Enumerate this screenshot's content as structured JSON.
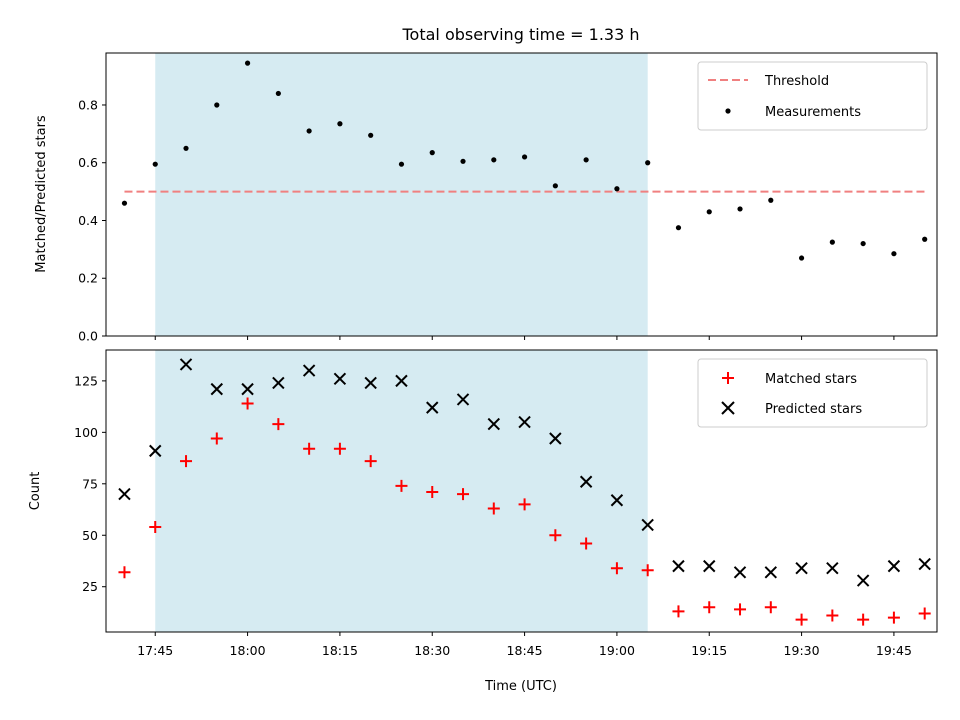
{
  "title": "Total observing time = 1.33 h",
  "colors": {
    "shade": "#add8e6",
    "threshold": "#f08080",
    "matched": "#ff0000",
    "predicted": "#000000",
    "measure": "#000000"
  },
  "chart_data": [
    {
      "type": "scatter",
      "ylabel": "Matched/Predicted stars",
      "xlabel": "",
      "xlim": [
        "17:37",
        "19:52"
      ],
      "ylim": [
        0,
        0.98
      ],
      "yticks": [
        0.0,
        0.2,
        0.4,
        0.6,
        0.8
      ],
      "ytick_labels": [
        "0.0",
        "0.2",
        "0.4",
        "0.6",
        "0.8"
      ],
      "shaded_region": [
        "17:45",
        "19:05"
      ],
      "legend_position": "top-right",
      "threshold": {
        "name": "Threshold",
        "value": 0.5,
        "x_range": [
          "17:40",
          "19:50"
        ],
        "style": "dashed"
      },
      "series": [
        {
          "name": "Measurements",
          "marker": "dot",
          "x": [
            "17:40",
            "17:45",
            "17:50",
            "17:55",
            "18:00",
            "18:05",
            "18:10",
            "18:15",
            "18:20",
            "18:25",
            "18:30",
            "18:35",
            "18:40",
            "18:45",
            "18:50",
            "18:55",
            "19:00",
            "19:05",
            "19:10",
            "19:15",
            "19:20",
            "19:25",
            "19:30",
            "19:35",
            "19:40",
            "19:45",
            "19:50"
          ],
          "y": [
            0.46,
            0.595,
            0.65,
            0.8,
            0.945,
            0.84,
            0.71,
            0.735,
            0.695,
            0.595,
            0.635,
            0.605,
            0.61,
            0.62,
            0.52,
            0.61,
            0.51,
            0.6,
            0.375,
            0.43,
            0.44,
            0.47,
            0.27,
            0.325,
            0.32,
            0.285,
            0.335
          ]
        }
      ]
    },
    {
      "type": "scatter",
      "ylabel": "Count",
      "xlabel": "Time (UTC)",
      "xlim": [
        "17:37",
        "19:52"
      ],
      "ylim": [
        3,
        140
      ],
      "yticks": [
        25,
        50,
        75,
        100,
        125
      ],
      "ytick_labels": [
        "25",
        "50",
        "75",
        "100",
        "125"
      ],
      "xticks": [
        "17:45",
        "18:00",
        "18:15",
        "18:30",
        "18:45",
        "19:00",
        "19:15",
        "19:30",
        "19:45"
      ],
      "xtick_labels": [
        "17:45",
        "18:00",
        "18:15",
        "18:30",
        "18:45",
        "19:00",
        "19:15",
        "19:30",
        "19:45"
      ],
      "shaded_region": [
        "17:45",
        "19:05"
      ],
      "legend_position": "top-right",
      "series": [
        {
          "name": "Matched stars",
          "marker": "plus",
          "x": [
            "17:40",
            "17:45",
            "17:50",
            "17:55",
            "18:00",
            "18:05",
            "18:10",
            "18:15",
            "18:20",
            "18:25",
            "18:30",
            "18:35",
            "18:40",
            "18:45",
            "18:50",
            "18:55",
            "19:00",
            "19:05",
            "19:10",
            "19:15",
            "19:20",
            "19:25",
            "19:30",
            "19:35",
            "19:40",
            "19:45",
            "19:50"
          ],
          "y": [
            32,
            54,
            86,
            97,
            114,
            104,
            92,
            92,
            86,
            74,
            71,
            70,
            63,
            65,
            50,
            46,
            34,
            33,
            13,
            15,
            14,
            15,
            9,
            11,
            9,
            10,
            12
          ]
        },
        {
          "name": "Predicted stars",
          "marker": "x",
          "x": [
            "17:40",
            "17:45",
            "17:50",
            "17:55",
            "18:00",
            "18:05",
            "18:10",
            "18:15",
            "18:20",
            "18:25",
            "18:30",
            "18:35",
            "18:40",
            "18:45",
            "18:50",
            "18:55",
            "19:00",
            "19:05",
            "19:10",
            "19:15",
            "19:20",
            "19:25",
            "19:30",
            "19:35",
            "19:40",
            "19:45",
            "19:50"
          ],
          "y": [
            70,
            91,
            133,
            121,
            121,
            124,
            130,
            126,
            124,
            125,
            112,
            116,
            104,
            105,
            97,
            76,
            67,
            55,
            35,
            35,
            32,
            32,
            34,
            34,
            28,
            35,
            36
          ]
        }
      ]
    }
  ]
}
